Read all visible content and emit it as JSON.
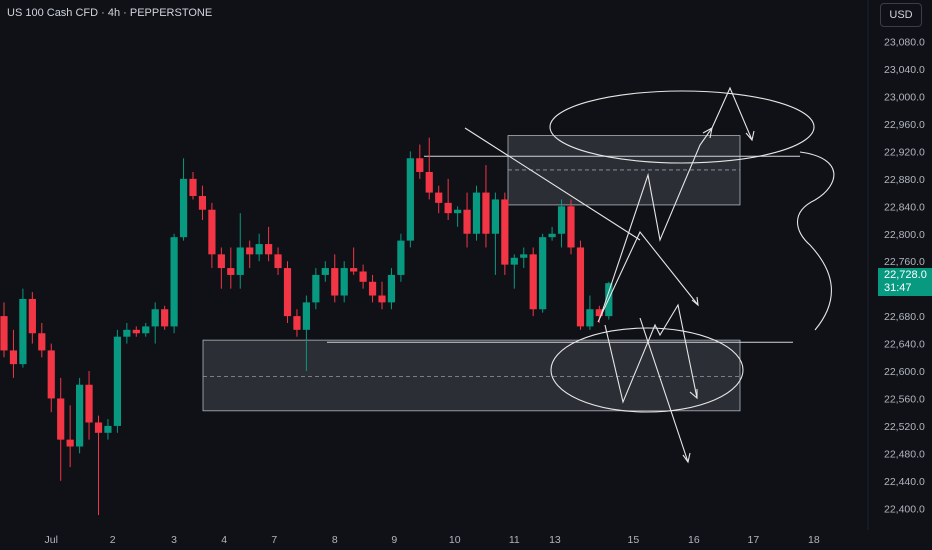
{
  "header": {
    "title": "US 100 Cash CFD · 4h · PEPPERSTONE"
  },
  "currency_button": {
    "label": "USD"
  },
  "price_badge": {
    "price": "22,728.0",
    "countdown": "31:47"
  },
  "chart_data": {
    "type": "candlestick",
    "symbol": "US 100 Cash CFD",
    "timeframe": "4h",
    "exchange": "PEPPERSTONE",
    "currency": "USD",
    "ylim": [
      22380,
      23110
    ],
    "y_ticks": [
      22400,
      22440,
      22480,
      22520,
      22560,
      22600,
      22640,
      22680,
      22720,
      22760,
      22800,
      22840,
      22880,
      22920,
      22960,
      23000,
      23040,
      23080
    ],
    "y_tick_labels": [
      "22,400.0",
      "22,440.0",
      "22,480.0",
      "22,520.0",
      "22,560.0",
      "22,600.0",
      "22,640.0",
      "22,680.0",
      "22,720.0",
      "22,760.0",
      "22,800.0",
      "22,840.0",
      "22,880.0",
      "22,920.0",
      "22,960.0",
      "23,000.0",
      "23,040.0",
      "23,080.0"
    ],
    "x_labels": [
      {
        "label": "Jul",
        "bar": 5
      },
      {
        "label": "2",
        "bar": 11.5
      },
      {
        "label": "3",
        "bar": 18
      },
      {
        "label": "4",
        "bar": 23.3
      },
      {
        "label": "7",
        "bar": 28.6
      },
      {
        "label": "8",
        "bar": 35
      },
      {
        "label": "9",
        "bar": 41.3
      },
      {
        "label": "10",
        "bar": 47.7
      },
      {
        "label": "11",
        "bar": 54
      },
      {
        "label": "13",
        "bar": 58.3
      },
      {
        "label": "15",
        "bar": 66.6
      },
      {
        "label": "16",
        "bar": 73
      },
      {
        "label": "17",
        "bar": 79.3
      },
      {
        "label": "18",
        "bar": 85.7
      }
    ],
    "candles": [
      [
        22680,
        22700,
        22620,
        22630
      ],
      [
        22630,
        22660,
        22590,
        22610
      ],
      [
        22610,
        22720,
        22605,
        22705
      ],
      [
        22705,
        22715,
        22640,
        22655
      ],
      [
        22655,
        22670,
        22620,
        22630
      ],
      [
        22630,
        22640,
        22540,
        22560
      ],
      [
        22560,
        22590,
        22440,
        22500
      ],
      [
        22500,
        22550,
        22460,
        22490
      ],
      [
        22490,
        22590,
        22480,
        22580
      ],
      [
        22580,
        22600,
        22500,
        22525
      ],
      [
        22525,
        22535,
        22390,
        22510
      ],
      [
        22510,
        22530,
        22500,
        22520
      ],
      [
        22520,
        22660,
        22510,
        22650
      ],
      [
        22650,
        22670,
        22640,
        22660
      ],
      [
        22660,
        22665,
        22650,
        22655
      ],
      [
        22655,
        22670,
        22650,
        22665
      ],
      [
        22665,
        22700,
        22640,
        22690
      ],
      [
        22690,
        22695,
        22660,
        22665
      ],
      [
        22665,
        22800,
        22655,
        22795
      ],
      [
        22795,
        22910,
        22790,
        22880
      ],
      [
        22880,
        22890,
        22850,
        22855
      ],
      [
        22855,
        22870,
        22820,
        22835
      ],
      [
        22835,
        22845,
        22750,
        22770
      ],
      [
        22770,
        22780,
        22720,
        22750
      ],
      [
        22750,
        22780,
        22720,
        22740
      ],
      [
        22740,
        22830,
        22720,
        22780
      ],
      [
        22780,
        22790,
        22750,
        22770
      ],
      [
        22770,
        22800,
        22760,
        22785
      ],
      [
        22785,
        22810,
        22760,
        22770
      ],
      [
        22770,
        22780,
        22740,
        22750
      ],
      [
        22750,
        22760,
        22670,
        22680
      ],
      [
        22680,
        22690,
        22650,
        22660
      ],
      [
        22660,
        22710,
        22600,
        22700
      ],
      [
        22700,
        22750,
        22690,
        22740
      ],
      [
        22740,
        22760,
        22730,
        22750
      ],
      [
        22750,
        22770,
        22700,
        22710
      ],
      [
        22710,
        22760,
        22700,
        22750
      ],
      [
        22750,
        22780,
        22740,
        22745
      ],
      [
        22745,
        22755,
        22720,
        22730
      ],
      [
        22730,
        22740,
        22700,
        22710
      ],
      [
        22710,
        22730,
        22690,
        22700
      ],
      [
        22700,
        22750,
        22690,
        22740
      ],
      [
        22740,
        22800,
        22730,
        22790
      ],
      [
        22790,
        22920,
        22780,
        22910
      ],
      [
        22910,
        22930,
        22880,
        22890
      ],
      [
        22890,
        22940,
        22850,
        22860
      ],
      [
        22860,
        22870,
        22830,
        22845
      ],
      [
        22845,
        22880,
        22820,
        22830
      ],
      [
        22830,
        22840,
        22810,
        22835
      ],
      [
        22835,
        22860,
        22780,
        22800
      ],
      [
        22800,
        22870,
        22790,
        22860
      ],
      [
        22860,
        22900,
        22780,
        22800
      ],
      [
        22800,
        22860,
        22740,
        22850
      ],
      [
        22850,
        22860,
        22740,
        22755
      ],
      [
        22755,
        22770,
        22720,
        22765
      ],
      [
        22765,
        22780,
        22750,
        22770
      ],
      [
        22770,
        22780,
        22680,
        22690
      ],
      [
        22690,
        22800,
        22685,
        22795
      ],
      [
        22795,
        22810,
        22790,
        22800
      ],
      [
        22800,
        22850,
        22780,
        22840
      ],
      [
        22840,
        22850,
        22770,
        22780
      ],
      [
        22780,
        22790,
        22660,
        22665
      ],
      [
        22665,
        22710,
        22660,
        22690
      ],
      [
        22690,
        22695,
        22670,
        22680
      ],
      [
        22680,
        22730,
        22675,
        22728
      ]
    ],
    "zones": [
      {
        "name": "upper-supply-zone",
        "from": 22842,
        "to": 22943,
        "mid": 22893
      },
      {
        "name": "lower-demand-zone",
        "from": 22542,
        "to": 22645,
        "mid": 22592
      }
    ],
    "levels": [
      {
        "name": "upper-level-line",
        "price": 22913
      },
      {
        "name": "lower-level-line",
        "price": 22642
      }
    ],
    "grid": false,
    "legend": "none"
  }
}
